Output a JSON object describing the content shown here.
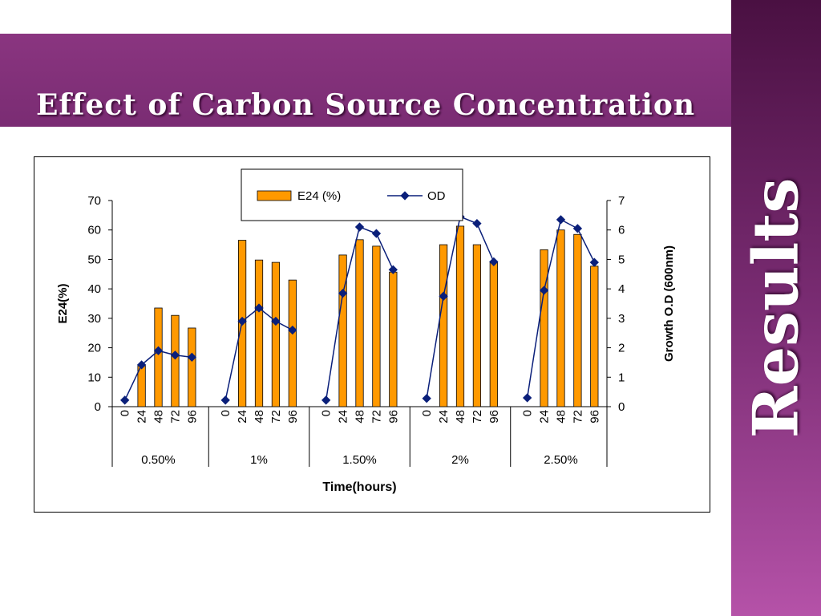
{
  "slide": {
    "title": "Effect of Carbon Source Concentration",
    "side_label": "Results"
  },
  "colors": {
    "band": "#7a2c73",
    "bar_fill": "#ff9900",
    "line": "#0a1f7a"
  },
  "chart_data": {
    "type": "bar",
    "xlabel": "Time(hours)",
    "ylabel": "E24(%)",
    "y2label": "Growth O.D (600nm)",
    "ylim": [
      0,
      70
    ],
    "y2lim": [
      0,
      7
    ],
    "yticks": [
      0,
      10,
      20,
      30,
      40,
      50,
      60,
      70
    ],
    "y2ticks": [
      0,
      1,
      2,
      3,
      4,
      5,
      6,
      7
    ],
    "legend": {
      "placement": "top-center",
      "bar_label": "E24 (%)",
      "line_label": "OD"
    },
    "groups": [
      {
        "label": "0.50%",
        "times": [
          "0",
          "24",
          "48",
          "72",
          "96"
        ],
        "e24": [
          null,
          14,
          33.5,
          31,
          26.7
        ],
        "od": [
          0.22,
          1.42,
          1.9,
          1.75,
          1.68
        ]
      },
      {
        "label": "1%",
        "times": [
          "0",
          "24",
          "48",
          "72",
          "96"
        ],
        "e24": [
          null,
          56.5,
          49.8,
          49,
          43
        ],
        "od": [
          0.22,
          2.9,
          3.35,
          2.9,
          2.6
        ]
      },
      {
        "label": "1.50%",
        "times": [
          "0",
          "24",
          "48",
          "72",
          "96"
        ],
        "e24": [
          null,
          51.5,
          56.7,
          54.5,
          45.7
        ],
        "od": [
          0.22,
          3.85,
          6.1,
          5.88,
          4.65
        ]
      },
      {
        "label": "2%",
        "times": [
          "0",
          "24",
          "48",
          "72",
          "96"
        ],
        "e24": [
          null,
          55,
          61.3,
          55,
          49.3
        ],
        "od": [
          0.28,
          3.75,
          6.45,
          6.22,
          4.92
        ]
      },
      {
        "label": "2.50%",
        "times": [
          "0",
          "24",
          "48",
          "72",
          "96"
        ],
        "e24": [
          null,
          53.3,
          60,
          58.5,
          47.7
        ],
        "od": [
          0.3,
          3.95,
          6.35,
          6.05,
          4.9
        ]
      }
    ]
  }
}
